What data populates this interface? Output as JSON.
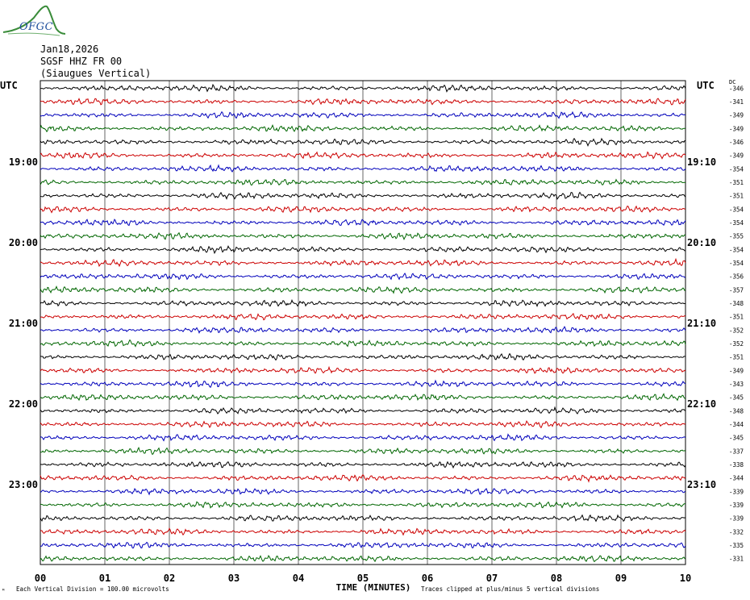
{
  "logo": {
    "text": "OFGC",
    "icon": "mountain-logo-icon"
  },
  "header": {
    "date": "Jan18,2026",
    "station": "SGSF HHZ FR 00",
    "location": "(Siaugues Vertical)"
  },
  "chart_data": {
    "type": "line",
    "title": "",
    "left_axis_label": "UTC",
    "right_axis_label": "UTC",
    "dc_label": "DC",
    "left_hour_labels": [
      "19:00",
      "20:00",
      "21:00",
      "22:00",
      "23:00"
    ],
    "left_hour_rows": [
      6,
      12,
      18,
      24,
      30
    ],
    "right_hour_labels": [
      "19:10",
      "20:10",
      "21:10",
      "22:10",
      "23:10"
    ],
    "right_hour_rows": [
      6,
      12,
      18,
      24,
      30
    ],
    "x_ticks": [
      "00",
      "01",
      "02",
      "03",
      "04",
      "05",
      "06",
      "07",
      "08",
      "09",
      "10"
    ],
    "xlabel": "TIME (MINUTES)",
    "xlim": [
      0,
      10
    ],
    "trace_colors": [
      "#000000",
      "#cc0000",
      "#0000bb",
      "#006600"
    ],
    "dc_values": [
      "-346",
      "-341",
      "-349",
      "-349",
      "-346",
      "-349",
      "-354",
      "-351",
      "-351",
      "-354",
      "-354",
      "-355",
      "-354",
      "-354",
      "-356",
      "-357",
      "-348",
      "-351",
      "-352",
      "-352",
      "-351",
      "-349",
      "-343",
      "-345",
      "-348",
      "-344",
      "-345",
      "-337",
      "-338",
      "-344",
      "-339",
      "-339",
      "-339",
      "-332",
      "-335",
      "-331"
    ]
  },
  "footer": {
    "scale_note": "Each Vertical Division =  100.00 microvolts",
    "clip_note": "Traces clipped at plus/minus 5 vertical divisions",
    "corner_mark": "ᴹ"
  }
}
